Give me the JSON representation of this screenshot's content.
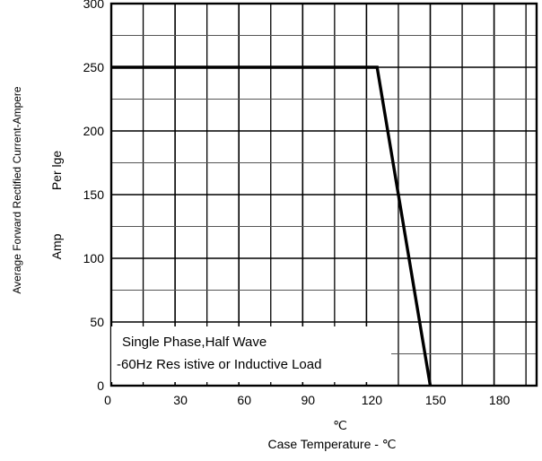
{
  "chart_data": {
    "type": "line",
    "title": "",
    "xlabel": "Case Temperature - ℃",
    "xunit": "℃",
    "ylabel": "Average Forward Rectified Current-Ampere",
    "ylabel2": "Per lge",
    "ylabel3": "Amp",
    "xlim": [
      0,
      200
    ],
    "ylim": [
      0,
      300
    ],
    "x_major_ticks": [
      0,
      30,
      60,
      90,
      120,
      150,
      180
    ],
    "x_tick_labels": [
      "0",
      "30",
      "60",
      "90",
      "120",
      "150",
      "180"
    ],
    "y_major_ticks": [
      0,
      50,
      100,
      150,
      200,
      250,
      300
    ],
    "y_tick_labels": [
      "0",
      "50",
      "100",
      "150",
      "200",
      "250",
      "300"
    ],
    "grid": true,
    "legend": "none",
    "annotation": [
      "Single  Phase,Half  Wave",
      "-60Hz  Res  istive or Inductive Load"
    ],
    "series": [
      {
        "x": [
          0,
          125,
          150
        ],
        "y": [
          250,
          250,
          0
        ]
      }
    ],
    "line_color": "#000000"
  }
}
